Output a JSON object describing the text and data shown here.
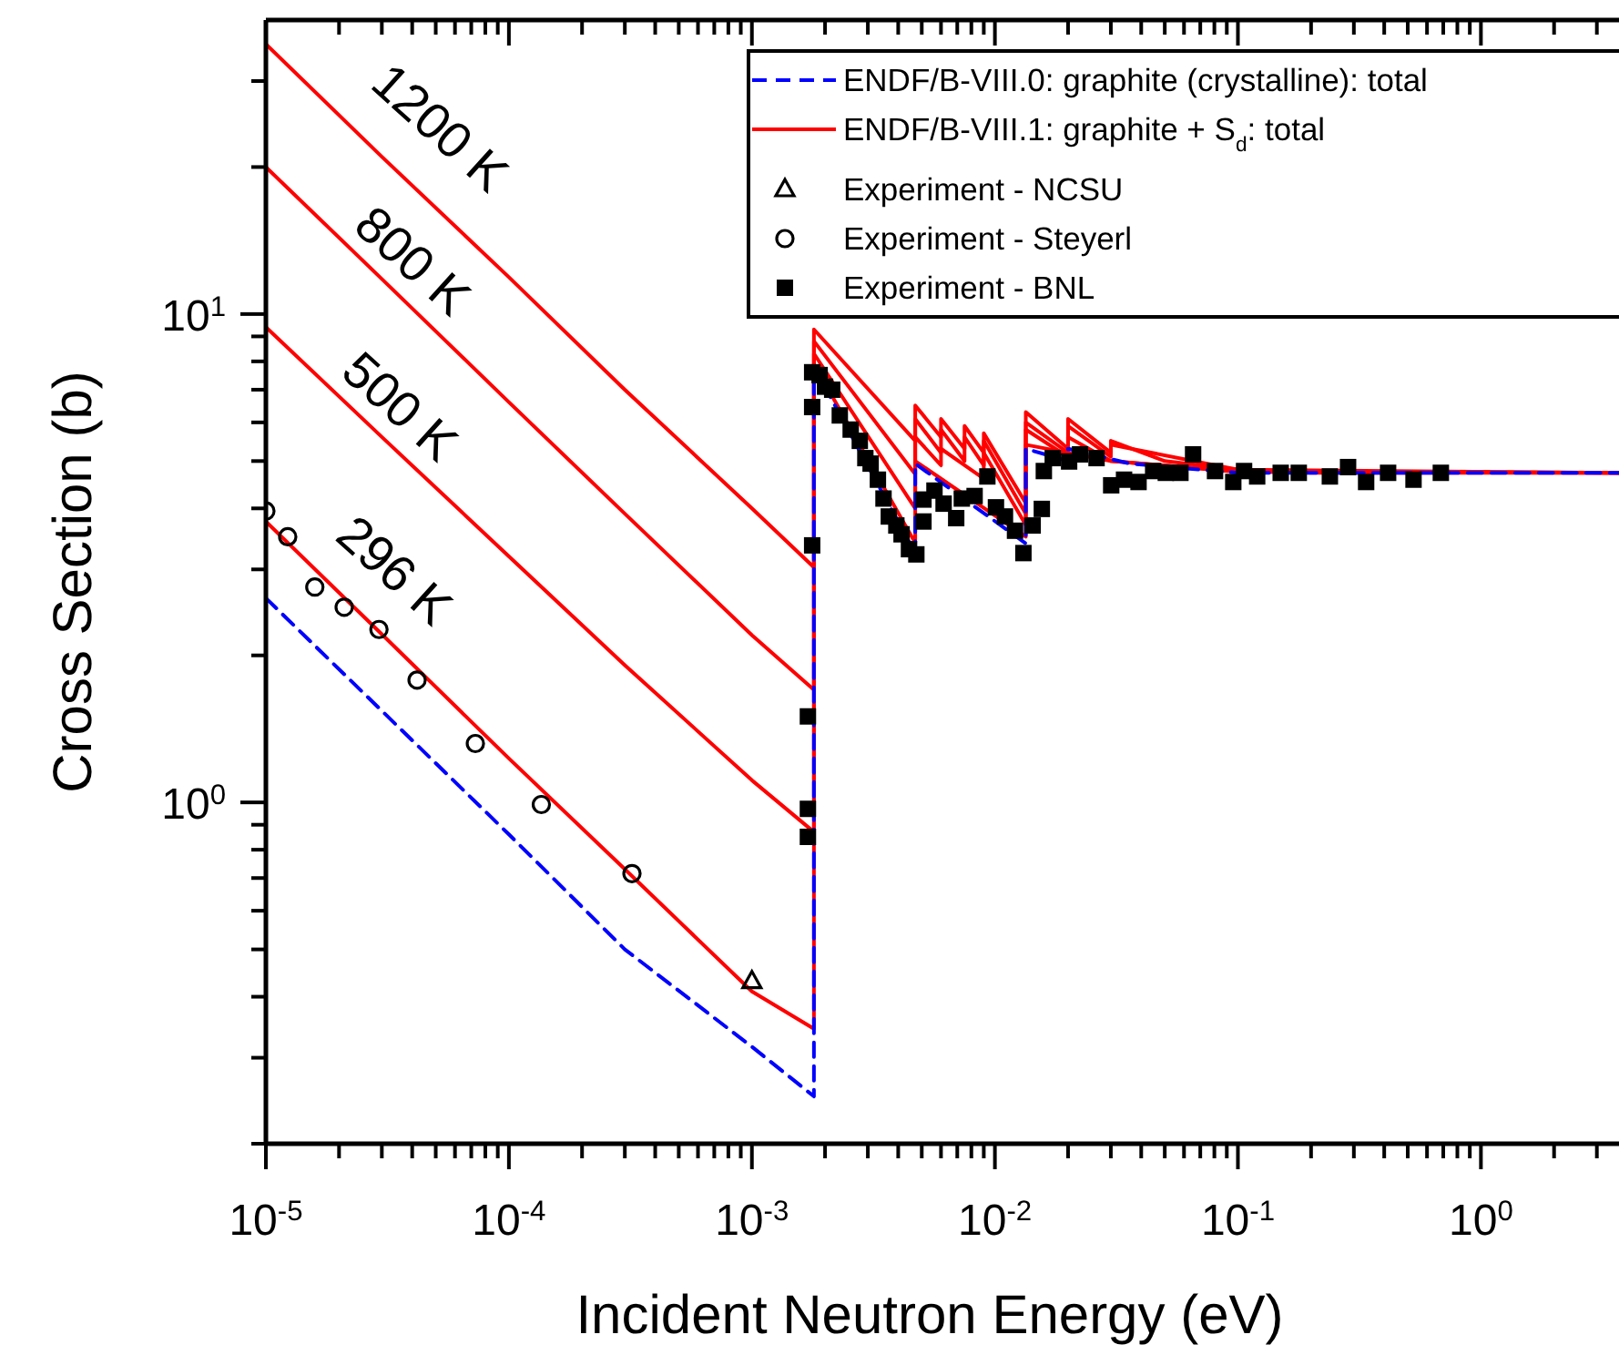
{
  "chart_data": {
    "type": "line",
    "xlabel": "Incident Neutron Energy (eV)",
    "ylabel": "Cross Section (b)",
    "log": "xy",
    "legend": "top right",
    "xlim": [
      1e-05,
      3.7
    ],
    "ylim": [
      0.2,
      40
    ],
    "xticks": [
      {
        "value": 1e-05,
        "label": "10$^{-5}$"
      },
      {
        "value": 2e-05,
        "label": null
      },
      {
        "value": 3e-05,
        "label": null
      },
      {
        "value": 4e-05,
        "label": null
      },
      {
        "value": 5e-05,
        "label": null
      },
      {
        "value": 6e-05,
        "label": null
      },
      {
        "value": 7e-05,
        "label": null
      },
      {
        "value": 8e-05,
        "label": null
      },
      {
        "value": 9e-05,
        "label": null
      },
      {
        "value": 0.0001,
        "label": "10$^{-4}$"
      },
      {
        "value": 0.0002,
        "label": null
      },
      {
        "value": 0.0003,
        "label": null
      },
      {
        "value": 0.0004,
        "label": null
      },
      {
        "value": 0.0005,
        "label": null
      },
      {
        "value": 0.0006,
        "label": null
      },
      {
        "value": 0.0007,
        "label": null
      },
      {
        "value": 0.0008,
        "label": null
      },
      {
        "value": 0.0009,
        "label": null
      },
      {
        "value": 0.001,
        "label": "10$^{-3}$"
      },
      {
        "value": 0.002,
        "label": null
      },
      {
        "value": 0.003,
        "label": null
      },
      {
        "value": 0.004,
        "label": null
      },
      {
        "value": 0.005,
        "label": null
      },
      {
        "value": 0.006,
        "label": null
      },
      {
        "value": 0.007,
        "label": null
      },
      {
        "value": 0.008,
        "label": null
      },
      {
        "value": 0.009,
        "label": null
      },
      {
        "value": 0.01,
        "label": "10$^{-2}$"
      },
      {
        "value": 0.02,
        "label": null
      },
      {
        "value": 0.03,
        "label": null
      },
      {
        "value": 0.04,
        "label": null
      },
      {
        "value": 0.05,
        "label": null
      },
      {
        "value": 0.06,
        "label": null
      },
      {
        "value": 0.07,
        "label": null
      },
      {
        "value": 0.08,
        "label": null
      },
      {
        "value": 0.09,
        "label": null
      },
      {
        "value": 0.1,
        "label": "10$^{-1}$"
      },
      {
        "value": 0.2,
        "label": null
      },
      {
        "value": 0.3,
        "label": null
      },
      {
        "value": 0.4,
        "label": null
      },
      {
        "value": 0.5,
        "label": null
      },
      {
        "value": 0.6,
        "label": null
      },
      {
        "value": 0.7,
        "label": null
      },
      {
        "value": 0.8,
        "label": null
      },
      {
        "value": 0.9,
        "label": null
      },
      {
        "value": 1,
        "label": "10$^{0}$"
      },
      {
        "value": 2,
        "label": null
      },
      {
        "value": 3,
        "label": null
      }
    ],
    "yticks": [
      {
        "value": 0.2,
        "label": null
      },
      {
        "value": 0.3,
        "label": null
      },
      {
        "value": 0.4,
        "label": null
      },
      {
        "value": 0.5,
        "label": null
      },
      {
        "value": 0.6,
        "label": null
      },
      {
        "value": 0.7,
        "label": null
      },
      {
        "value": 0.8,
        "label": null
      },
      {
        "value": 0.9,
        "label": null
      },
      {
        "value": 1,
        "label": "10$^{0}$"
      },
      {
        "value": 2,
        "label": null
      },
      {
        "value": 3,
        "label": null
      },
      {
        "value": 4,
        "label": null
      },
      {
        "value": 5,
        "label": null
      },
      {
        "value": 6,
        "label": null
      },
      {
        "value": 7,
        "label": null
      },
      {
        "value": 8,
        "label": null
      },
      {
        "value": 9,
        "label": null
      },
      {
        "value": 10,
        "label": "10$^{1}$"
      },
      {
        "value": 20,
        "label": null
      },
      {
        "value": 30,
        "label": null
      }
    ],
    "series": [
      {
        "name": "ENDF/B-VIII.0: graphite (crystalline): total",
        "color": "#0000ff",
        "line_style": "dashed",
        "x": [
          1e-05,
          3e-05,
          0.0001,
          0.0003,
          0.001,
          0.0018,
          0.0018,
          0.0047,
          0.0047,
          0.0134,
          0.0134,
          0.02,
          0.02,
          0.036,
          0.1,
          3.7
        ],
        "values": [
          2.62,
          1.54,
          0.86,
          0.5,
          0.316,
          0.25,
          7.8,
          3.24,
          4.94,
          3.39,
          5.3,
          5.0,
          5.3,
          4.94,
          4.73,
          4.73
        ]
      },
      {
        "name": "ENDF/B-VIII.1: graphite + S$_{d}$: total",
        "color": "#ff0000",
        "line_style": "solid",
        "x": [
          1e-05,
          3e-05,
          0.0001,
          0.0003,
          0.001,
          0.0018,
          0.0018,
          0.0047,
          0.0047,
          0.0134,
          0.0134,
          0.03,
          0.1,
          3.7
        ],
        "values": [
          3.76,
          2.21,
          1.23,
          0.73,
          0.41,
          0.344,
          7.9,
          3.4,
          5.0,
          3.5,
          5.4,
          5.0,
          4.75,
          4.73
        ]
      },
      {
        "color": "#ff0000",
        "line_style": "solid",
        "x": [
          1e-05,
          3e-05,
          0.0001,
          0.0003,
          0.001,
          0.0018,
          0.0018,
          0.0047,
          0.0047,
          0.006,
          0.006,
          0.009,
          0.009,
          0.0134,
          0.0134,
          0.02,
          0.02,
          0.03,
          0.1,
          3.7
        ],
        "values": [
          9.4,
          5.6,
          3.19,
          1.91,
          1.11,
          0.87,
          8.3,
          4.0,
          5.6,
          4.9,
          5.3,
          4.6,
          5.2,
          3.7,
          5.8,
          5.1,
          5.6,
          5.0,
          4.77,
          4.73
        ]
      },
      {
        "color": "#ff0000",
        "line_style": "solid",
        "x": [
          1e-05,
          3e-05,
          0.0001,
          0.0003,
          0.001,
          0.0018,
          0.0018,
          0.0047,
          0.0047,
          0.006,
          0.006,
          0.0075,
          0.0075,
          0.009,
          0.009,
          0.0134,
          0.0134,
          0.02,
          0.02,
          0.03,
          0.03,
          0.1,
          3.7
        ],
        "values": [
          20.0,
          11.8,
          6.6,
          3.9,
          2.2,
          1.7,
          8.8,
          4.7,
          6.1,
          5.2,
          5.8,
          5.0,
          5.6,
          4.9,
          5.5,
          3.9,
          6.0,
          5.2,
          5.9,
          5.1,
          5.4,
          4.8,
          4.73
        ]
      },
      {
        "color": "#ff0000",
        "line_style": "solid",
        "x": [
          1e-05,
          3e-05,
          0.0001,
          0.0003,
          0.001,
          0.0018,
          0.0018,
          0.0047,
          0.0047,
          0.006,
          0.006,
          0.0075,
          0.0075,
          0.009,
          0.009,
          0.0134,
          0.0134,
          0.02,
          0.02,
          0.03,
          0.03,
          0.05,
          0.1,
          0.2,
          3.7
        ],
        "values": [
          35.7,
          21.0,
          11.9,
          7.0,
          4.0,
          3.03,
          9.3,
          5.5,
          6.5,
          5.6,
          6.1,
          5.3,
          5.9,
          5.2,
          5.7,
          4.1,
          6.3,
          5.3,
          6.1,
          5.2,
          5.5,
          5.0,
          4.8,
          4.73,
          4.73
        ]
      },
      {
        "name": "Experiment - NCSU",
        "type": "scatter",
        "marker": "triangle",
        "color": "#000000",
        "x": [
          0.001
        ],
        "values": [
          0.43
        ]
      },
      {
        "name": "Experiment - Steyerl",
        "type": "scatter",
        "marker": "circle",
        "color": "#000000",
        "x": [
          1e-05,
          1.23e-05,
          1.59e-05,
          2.1e-05,
          2.92e-05,
          4.19e-05,
          7.28e-05,
          0.000136,
          0.000321
        ],
        "values": [
          3.95,
          3.5,
          2.76,
          2.51,
          2.26,
          1.78,
          1.32,
          0.99,
          0.715
        ]
      },
      {
        "name": "Experiment - BNL",
        "type": "scatter",
        "marker": "square",
        "color": "#000000",
        "x": [
          0.0017,
          0.0017,
          0.0017,
          0.00177,
          0.00177,
          0.00177,
          0.0019,
          0.002,
          0.00214,
          0.0023,
          0.00255,
          0.00278,
          0.00293,
          0.00308,
          0.0033,
          0.00348,
          0.00366,
          0.00393,
          0.00413,
          0.00443,
          0.00475,
          0.00508,
          0.00508,
          0.00564,
          0.00615,
          0.00693,
          0.00731,
          0.00825,
          0.00931,
          0.0101,
          0.011,
          0.0121,
          0.0131,
          0.0143,
          0.0156,
          0.0159,
          0.0173,
          0.0202,
          0.0224,
          0.0262,
          0.0301,
          0.034,
          0.039,
          0.0448,
          0.0505,
          0.058,
          0.0654,
          0.0805,
          0.0957,
          0.106,
          0.12,
          0.15,
          0.178,
          0.239,
          0.284,
          0.337,
          0.415,
          0.528,
          0.684
        ],
        "values": [
          1.5,
          0.97,
          0.85,
          3.36,
          6.45,
          7.6,
          7.5,
          7.1,
          7.0,
          6.2,
          5.8,
          5.5,
          5.07,
          4.94,
          4.58,
          4.19,
          3.85,
          3.69,
          3.54,
          3.3,
          3.22,
          3.76,
          4.17,
          4.35,
          4.09,
          3.82,
          4.19,
          4.24,
          4.65,
          4.02,
          3.85,
          3.6,
          3.24,
          3.69,
          3.99,
          4.77,
          5.07,
          4.99,
          5.16,
          5.07,
          4.46,
          4.58,
          4.53,
          4.77,
          4.73,
          4.73,
          5.16,
          4.77,
          4.53,
          4.77,
          4.65,
          4.73,
          4.73,
          4.65,
          4.86,
          4.53,
          4.73,
          4.58,
          4.73
        ]
      }
    ],
    "annotations": [
      "1200 K",
      "800 K",
      "500 K",
      "296 K"
    ]
  }
}
